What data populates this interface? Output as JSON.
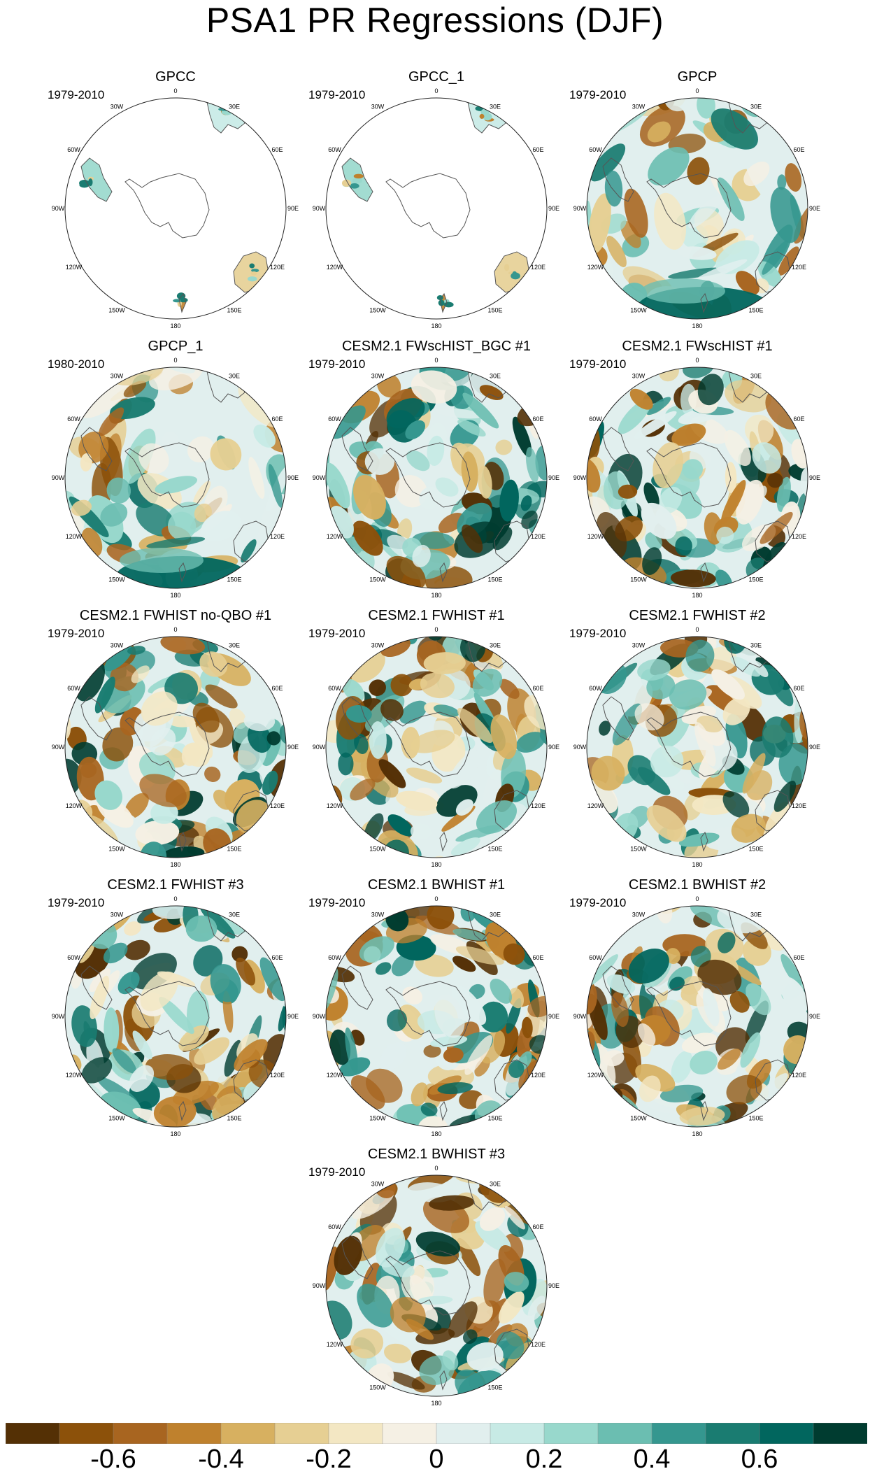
{
  "title": "PSA1 PR Regressions (DJF)",
  "panels": [
    {
      "title": "GPCC",
      "period": "1979-2010",
      "style": "obs-land"
    },
    {
      "title": "GPCC_1",
      "period": "1979-2010",
      "style": "obs-land"
    },
    {
      "title": "GPCP",
      "period": "1979-2010",
      "style": "obs"
    },
    {
      "title": "GPCP_1",
      "period": "1980-2010",
      "style": "obs"
    },
    {
      "title": "CESM2.1 FWscHIST_BGC #1",
      "period": "1979-2010",
      "style": "model"
    },
    {
      "title": "CESM2.1 FWscHIST #1",
      "period": "1979-2010",
      "style": "model"
    },
    {
      "title": "CESM2.1 FWHIST no-QBO #1",
      "period": "1979-2010",
      "style": "model"
    },
    {
      "title": "CESM2.1 FWHIST #1",
      "period": "1979-2010",
      "style": "model"
    },
    {
      "title": "CESM2.1 FWHIST #2",
      "period": "1979-2010",
      "style": "model"
    },
    {
      "title": "CESM2.1 FWHIST #3",
      "period": "1979-2010",
      "style": "model"
    },
    {
      "title": "CESM2.1 BWHIST #1",
      "period": "1979-2010",
      "style": "model"
    },
    {
      "title": "CESM2.1 BWHIST #2",
      "period": "1979-2010",
      "style": "model"
    },
    {
      "title": "CESM2.1 BWHIST #3",
      "period": "1979-2010",
      "style": "model"
    }
  ],
  "longitude_labels": [
    "0",
    "30E",
    "60E",
    "90E",
    "120E",
    "150E",
    "180",
    "150W",
    "120W",
    "90W",
    "60W",
    "30W"
  ],
  "colorbar": {
    "colors": [
      "#543005",
      "#8c510a",
      "#a86520",
      "#bf812d",
      "#d7b060",
      "#e6cf93",
      "#f3e7c3",
      "#f5f0e4",
      "#e1efee",
      "#c7eae5",
      "#98d8cc",
      "#6bbeb1",
      "#35978f",
      "#1a7c71",
      "#01665e",
      "#003c30"
    ],
    "tick_labels": [
      "-0.6",
      "-0.4",
      "-0.2",
      "0",
      "0.2",
      "0.4",
      "0.6"
    ]
  }
}
